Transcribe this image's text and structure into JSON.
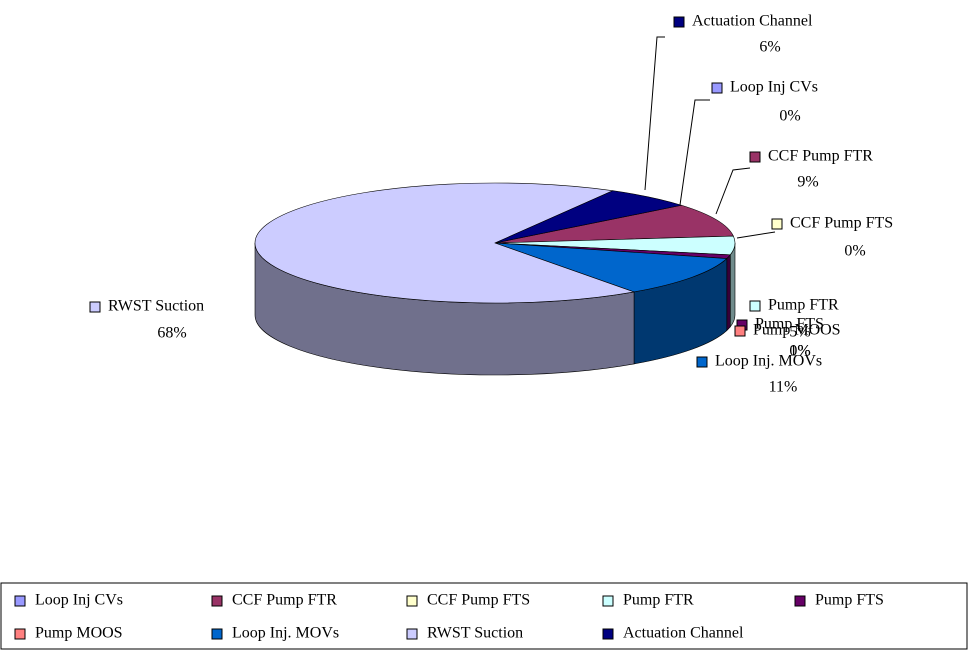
{
  "chart_data": {
    "type": "pie",
    "categories": [
      "Loop Inj CVs",
      "CCF Pump FTR",
      "CCF Pump FTS",
      "Pump FTR",
      "Pump FTS",
      "Pump MOOS",
      "Loop Inj. MOVs",
      "RWST Suction",
      "Actuation Channel"
    ],
    "values": [
      0,
      9,
      0,
      5,
      1,
      0,
      11,
      68,
      6
    ],
    "value_labels": [
      "0%",
      "9%",
      "0%",
      "5%",
      "1%",
      "0%",
      "11%",
      "68%",
      "6%"
    ],
    "colors": [
      "#9999ff",
      "#993366",
      "#ffffcc",
      "#ccffff",
      "#660066",
      "#ff8080",
      "#0066cc",
      "#ccccff",
      "#000080"
    ],
    "legend": "bottom"
  }
}
